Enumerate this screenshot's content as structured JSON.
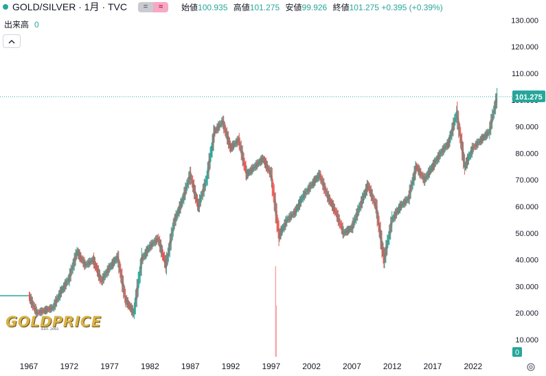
{
  "header": {
    "symbol": "GOLD/SILVER · 1月 · TVC",
    "toggle_left": "=",
    "toggle_right": "≈",
    "open_label": "始値",
    "open_value": "100.935",
    "high_label": "高値",
    "high_value": "101.275",
    "low_label": "安値",
    "low_value": "99.926",
    "close_label": "終値",
    "close_value": "101.275",
    "change": "+0.395 (+0.39%)"
  },
  "volume": {
    "label": "出来高",
    "value": "0"
  },
  "collapse_icon": "chevron-up-icon",
  "settings_icon": "gear-icon",
  "watermark": {
    "text": "GOLDPRICE",
    "subtext": "EST. 2002"
  },
  "colors": {
    "up": "#26a69a",
    "down": "#ef5350",
    "last_price_line": "#26a69a"
  },
  "chart_data": {
    "type": "candlestick",
    "title": "GOLD/SILVER · 1月 · TVC",
    "x_tick_labels": [
      "1967",
      "1972",
      "1977",
      "1982",
      "1987",
      "1992",
      "1997",
      "2002",
      "2007",
      "2012",
      "2017",
      "2022"
    ],
    "y_tick_labels": [
      "10.000",
      "20.000",
      "30.000",
      "40.000",
      "50.000",
      "60.000",
      "70.000",
      "80.000",
      "90.000",
      "100.000",
      "110.000",
      "120.000",
      "130.000"
    ],
    "ylim": [
      3,
      132
    ],
    "last_price": 101.275,
    "last_price_label": "101.275",
    "volume_axis_label": "0",
    "grid": false,
    "series": [
      {
        "x": [
          1967,
          1968,
          1969,
          1970,
          1971,
          1972,
          1973,
          1974,
          1975,
          1976,
          1977,
          1978,
          1979,
          1980,
          1981,
          1982,
          1983,
          1984,
          1985,
          1986,
          1987,
          1988,
          1989,
          1990,
          1991,
          1992,
          1993,
          1994,
          1995,
          1996,
          1997,
          1998,
          1999,
          2000,
          2001,
          2002,
          2003,
          2004,
          2005,
          2006,
          2007,
          2008,
          2009,
          2010,
          2011,
          2012,
          2013,
          2014,
          2015,
          2016,
          2017,
          2018,
          2019,
          2020,
          2021,
          2022,
          2023,
          2024,
          2025
        ],
        "y": [
          26.5,
          20,
          21,
          22,
          28,
          33,
          43,
          38,
          40,
          32,
          37,
          41,
          25,
          20,
          40,
          45,
          48,
          38,
          54,
          62,
          72,
          60,
          70,
          88,
          92,
          82,
          85,
          72,
          75,
          78,
          72,
          49,
          55,
          58,
          64,
          68,
          72,
          64,
          58,
          50,
          52,
          60,
          68,
          60,
          40,
          55,
          60,
          63,
          75,
          70,
          75,
          80,
          84,
          95,
          75,
          82,
          85,
          88,
          101.275
        ]
      }
    ],
    "volume_spikes": [
      {
        "x": 1998,
        "value": "high"
      }
    ]
  }
}
